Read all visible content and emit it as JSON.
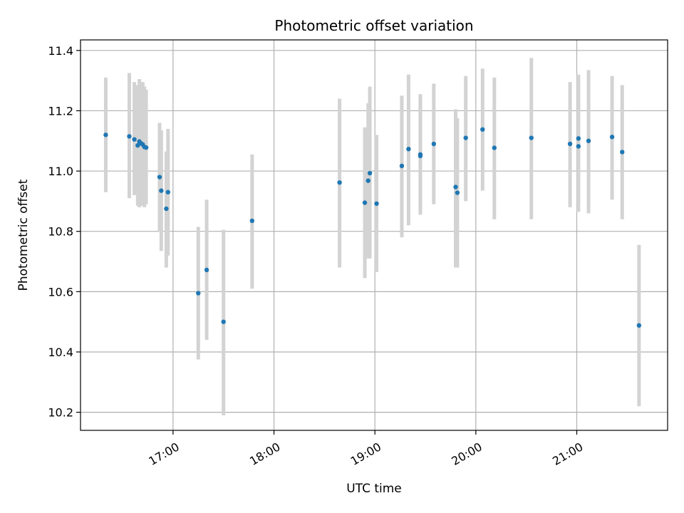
{
  "chart_data": {
    "type": "scatter",
    "title": "Photometric offset variation",
    "xlabel": "UTC time",
    "ylabel": "Photometric offset",
    "xlim": [
      "16:05",
      "21:54"
    ],
    "ylim": [
      10.14,
      11.435
    ],
    "grid": true,
    "x_ticks": [
      "17:00",
      "18:00",
      "19:00",
      "20:00",
      "21:00"
    ],
    "y_ticks": [
      "10.2",
      "10.4",
      "10.6",
      "10.8",
      "11.0",
      "11.2",
      "11.4"
    ],
    "marker_color": "#1f77b4",
    "errorbar_color": "#d3d3d3",
    "points": [
      {
        "t": "16:20",
        "y": 11.12,
        "lo": 10.93,
        "hi": 11.31
      },
      {
        "t": "16:34",
        "y": 11.115,
        "lo": 10.91,
        "hi": 11.325
      },
      {
        "t": "16:37",
        "y": 11.105,
        "lo": 10.92,
        "hi": 11.295
      },
      {
        "t": "16:39",
        "y": 11.085,
        "lo": 10.885,
        "hi": 11.285
      },
      {
        "t": "16:40",
        "y": 11.098,
        "lo": 10.88,
        "hi": 11.305
      },
      {
        "t": "16:41",
        "y": 11.092,
        "lo": 10.89,
        "hi": 11.29
      },
      {
        "t": "16:42",
        "y": 11.088,
        "lo": 10.885,
        "hi": 11.295
      },
      {
        "t": "16:43",
        "y": 11.08,
        "lo": 10.88,
        "hi": 11.28
      },
      {
        "t": "16:44",
        "y": 11.078,
        "lo": 10.89,
        "hi": 11.27
      },
      {
        "t": "16:52",
        "y": 10.98,
        "lo": 10.8,
        "hi": 11.16
      },
      {
        "t": "16:53",
        "y": 10.935,
        "lo": 10.735,
        "hi": 11.135
      },
      {
        "t": "16:56",
        "y": 10.875,
        "lo": 10.68,
        "hi": 11.065
      },
      {
        "t": "16:57",
        "y": 10.93,
        "lo": 10.72,
        "hi": 11.14
      },
      {
        "t": "17:15",
        "y": 10.595,
        "lo": 10.375,
        "hi": 10.815
      },
      {
        "t": "17:20",
        "y": 10.672,
        "lo": 10.44,
        "hi": 10.905
      },
      {
        "t": "17:30",
        "y": 10.5,
        "lo": 10.19,
        "hi": 10.805
      },
      {
        "t": "17:47",
        "y": 10.835,
        "lo": 10.61,
        "hi": 11.055
      },
      {
        "t": "18:39",
        "y": 10.962,
        "lo": 10.68,
        "hi": 11.24
      },
      {
        "t": "18:54",
        "y": 10.895,
        "lo": 10.645,
        "hi": 11.145
      },
      {
        "t": "18:56",
        "y": 10.968,
        "lo": 10.71,
        "hi": 11.225
      },
      {
        "t": "18:57",
        "y": 10.993,
        "lo": 10.71,
        "hi": 11.28
      },
      {
        "t": "19:01",
        "y": 10.892,
        "lo": 10.665,
        "hi": 11.12
      },
      {
        "t": "19:16",
        "y": 11.017,
        "lo": 10.78,
        "hi": 11.25
      },
      {
        "t": "19:20",
        "y": 11.073,
        "lo": 10.82,
        "hi": 11.32
      },
      {
        "t": "19:27",
        "y": 11.05,
        "lo": 10.855,
        "hi": 11.25
      },
      {
        "t": "19:27",
        "y": 11.055,
        "lo": 10.86,
        "hi": 11.255
      },
      {
        "t": "19:35",
        "y": 11.09,
        "lo": 10.89,
        "hi": 11.29
      },
      {
        "t": "19:48",
        "y": 10.947,
        "lo": 10.68,
        "hi": 11.205
      },
      {
        "t": "19:49",
        "y": 10.928,
        "lo": 10.68,
        "hi": 11.175
      },
      {
        "t": "19:54",
        "y": 11.11,
        "lo": 10.9,
        "hi": 11.315
      },
      {
        "t": "20:04",
        "y": 11.138,
        "lo": 10.935,
        "hi": 11.34
      },
      {
        "t": "20:11",
        "y": 11.077,
        "lo": 10.84,
        "hi": 11.31
      },
      {
        "t": "20:33",
        "y": 11.11,
        "lo": 10.84,
        "hi": 11.375
      },
      {
        "t": "20:56",
        "y": 11.09,
        "lo": 10.88,
        "hi": 11.295
      },
      {
        "t": "21:01",
        "y": 11.082,
        "lo": 10.865,
        "hi": 11.3
      },
      {
        "t": "21:01",
        "y": 11.108,
        "lo": 10.895,
        "hi": 11.32
      },
      {
        "t": "21:07",
        "y": 11.1,
        "lo": 10.86,
        "hi": 11.335
      },
      {
        "t": "21:21",
        "y": 11.113,
        "lo": 10.905,
        "hi": 11.315
      },
      {
        "t": "21:27",
        "y": 11.063,
        "lo": 10.84,
        "hi": 11.285
      },
      {
        "t": "21:37",
        "y": 10.488,
        "lo": 10.22,
        "hi": 10.755
      }
    ]
  }
}
